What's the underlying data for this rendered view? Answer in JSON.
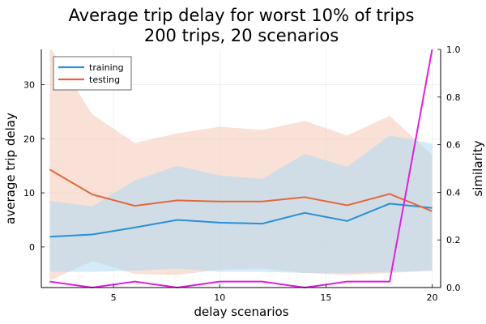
{
  "chart_data": {
    "type": "line",
    "title": "Average trip delay for worst 10% of trips",
    "subtitle": "200 trips, 20 scenarios",
    "xlabel": "delay scenarios",
    "ylabel": "average trip delay",
    "y2label": "similarity",
    "xlim": [
      1.6,
      20.4
    ],
    "ylim": [
      -7.5,
      36.5
    ],
    "y2lim": [
      0,
      1.0
    ],
    "xticks": [
      5,
      10,
      15,
      20
    ],
    "yticks": [
      0,
      10,
      20,
      30
    ],
    "y2ticks": [
      0.0,
      0.2,
      0.4,
      0.6,
      0.8,
      1.0
    ],
    "grid": true,
    "legend_position": "top-left",
    "x": [
      2,
      4,
      6,
      8,
      10,
      12,
      14,
      16,
      18,
      20
    ],
    "series": [
      {
        "name": "training",
        "color": "#2a8fd6",
        "band_color": "#a9d9f5",
        "values": [
          1.9,
          2.3,
          3.6,
          5.0,
          4.5,
          4.3,
          6.3,
          4.8,
          8.0,
          7.2
        ],
        "lower": [
          -4.6,
          -4.6,
          -4.4,
          -4.0,
          -4.6,
          -4.6,
          -4.8,
          -4.8,
          -4.6,
          -4.4
        ],
        "upper": [
          8.5,
          7.5,
          12.3,
          15.0,
          13.2,
          12.6,
          17.2,
          14.8,
          20.6,
          19.1
        ]
      },
      {
        "name": "testing",
        "color": "#e2683c",
        "band_color": "#f4c3af",
        "values": [
          14.3,
          9.7,
          7.6,
          8.6,
          8.4,
          8.4,
          9.2,
          7.7,
          9.8,
          6.6
        ],
        "lower": [
          -6.2,
          -2.6,
          -5.0,
          -5.2,
          -4.2,
          -4.0,
          -4.8,
          -5.2,
          -4.8,
          -4.4
        ],
        "upper": [
          37.0,
          24.5,
          19.2,
          21.0,
          22.2,
          21.6,
          23.3,
          20.6,
          24.2,
          17.0
        ]
      }
    ],
    "similarity": {
      "color": "#e01fe0",
      "values": [
        0.025,
        0.0,
        0.025,
        0.0,
        0.025,
        0.025,
        0.0,
        0.025,
        0.025,
        1.0
      ]
    }
  }
}
